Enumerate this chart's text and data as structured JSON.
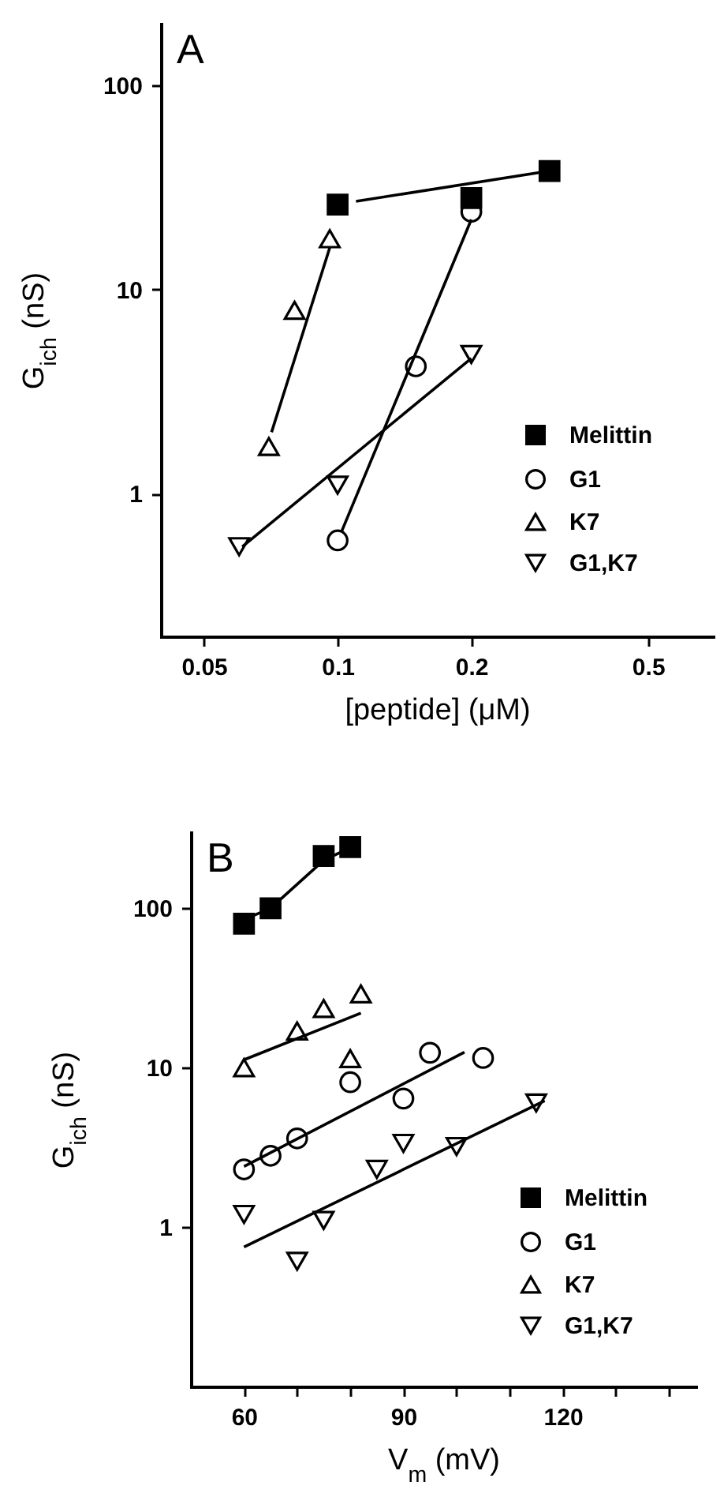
{
  "chart_data": [
    {
      "type": "scatter",
      "annotations": [
        "A"
      ],
      "xlabel": "[peptide] (μM)",
      "ylabel": "G$_{ich}$ (nS)",
      "log": "xy",
      "grid": false,
      "legend": "bottom right",
      "xlim": [
        0.04,
        0.7
      ],
      "xticks": [
        0.05,
        0.1,
        0.2,
        0.5
      ],
      "ylim": [
        0.2,
        200
      ],
      "yticks": [
        1,
        10,
        100
      ],
      "series": [
        {
          "name": "Melittin",
          "color": "#000000",
          "marker": "square",
          "x": [
            0.1,
            0.2,
            0.3
          ],
          "values": [
            26,
            28,
            38
          ]
        },
        {
          "name": "G1",
          "color": "#000000",
          "marker": "circle",
          "x": [
            0.1,
            0.15,
            0.2
          ],
          "values": [
            0.59,
            4.2,
            24
          ]
        },
        {
          "name": "K7",
          "color": "#000000",
          "marker": "triangle",
          "x": [
            0.07,
            0.08,
            0.096
          ],
          "values": [
            1.7,
            7.9,
            17.7
          ]
        },
        {
          "name": "G1,K7",
          "color": "#000000",
          "marker": "triangle-down",
          "x": [
            0.06,
            0.1,
            0.2
          ],
          "values": [
            0.55,
            1.1,
            4.8
          ]
        },
        {
          "type": "line",
          "color": "#000000",
          "x": [
            0.11,
            0.3
          ],
          "values": [
            27,
            38
          ]
        },
        {
          "type": "line",
          "color": "#000000",
          "x": [
            0.102,
            0.2
          ],
          "values": [
            0.65,
            22
          ]
        },
        {
          "type": "line",
          "color": "#000000",
          "x": [
            0.071,
            0.096
          ],
          "values": [
            2.0,
            16
          ]
        },
        {
          "type": "line",
          "color": "#000000",
          "x": [
            0.061,
            0.2
          ],
          "values": [
            0.55,
            4.6
          ]
        }
      ]
    },
    {
      "type": "scatter",
      "annotations": [
        "B"
      ],
      "xlabel": "V$_{m}$ (mV)",
      "ylabel": "G$_{ich}$ (nS)",
      "log": "y",
      "grid": false,
      "legend": "bottom right",
      "xlim": [
        50,
        145
      ],
      "xticks": [
        60,
        {
          "value": 70,
          "label": null
        },
        {
          "value": 80,
          "label": null
        },
        90,
        {
          "value": 100,
          "label": null
        },
        {
          "value": 110,
          "label": null
        },
        120,
        {
          "value": 130,
          "label": null
        },
        {
          "value": 140,
          "label": null
        }
      ],
      "ylim": [
        0.1,
        300
      ],
      "yticks": [
        1,
        10,
        100
      ],
      "series": [
        {
          "name": "Melittin",
          "color": "#000000",
          "marker": "square",
          "x": [
            60,
            65,
            75,
            80
          ],
          "values": [
            80,
            100,
            213,
            242
          ]
        },
        {
          "name": "G1",
          "color": "#000000",
          "marker": "circle",
          "x": [
            60,
            65,
            70,
            80,
            90,
            95,
            105
          ],
          "values": [
            2.3,
            2.8,
            3.6,
            8.1,
            6.4,
            12.4,
            11.5
          ]
        },
        {
          "name": "K7",
          "color": "#000000",
          "marker": "triangle",
          "x": [
            60,
            70,
            75,
            80,
            82
          ],
          "values": [
            10,
            17,
            23.5,
            11.4,
            29
          ]
        },
        {
          "name": "G1,K7",
          "color": "#000000",
          "marker": "triangle-down",
          "x": [
            60,
            70,
            75,
            85,
            90,
            100,
            115
          ],
          "values": [
            1.2,
            0.61,
            1.1,
            2.3,
            3.35,
            3.2,
            6.0
          ]
        },
        {
          "type": "line",
          "color": "#000000",
          "x": [
            60,
            65,
            75,
            80
          ],
          "values": [
            85,
            100,
            200,
            240
          ]
        },
        {
          "type": "line",
          "color": "#000000",
          "x": [
            60,
            82
          ],
          "values": [
            11.2,
            22
          ]
        },
        {
          "type": "line",
          "color": "#000000",
          "x": [
            60,
            101.5
          ],
          "values": [
            2.4,
            12.5
          ]
        },
        {
          "type": "line",
          "color": "#000000",
          "x": [
            60,
            116.6
          ],
          "values": [
            0.75,
            6.2
          ]
        }
      ]
    }
  ]
}
